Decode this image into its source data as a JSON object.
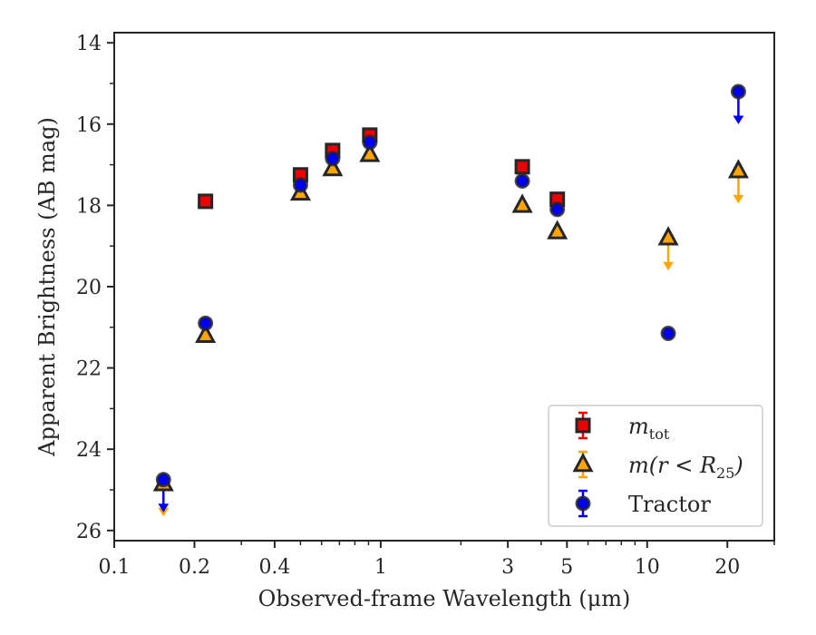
{
  "chart_data": {
    "type": "scatter",
    "xscale": "log",
    "xlabel": "Observed-frame Wavelength (μm)",
    "ylabel": "Apparent Brightness (AB mag)",
    "xlim": [
      0.1,
      30
    ],
    "ylim": [
      26.25,
      13.75
    ],
    "y_inverted": true,
    "x_ticks": [
      {
        "value": 0.1,
        "label": "0.1"
      },
      {
        "value": 0.2,
        "label": "0.2"
      },
      {
        "value": 0.4,
        "label": "0.4"
      },
      {
        "value": 1,
        "label": "1"
      },
      {
        "value": 3,
        "label": "3"
      },
      {
        "value": 5,
        "label": "5"
      },
      {
        "value": 10,
        "label": "10"
      },
      {
        "value": 20,
        "label": "20"
      }
    ],
    "y_ticks": [
      {
        "value": 14,
        "label": "14"
      },
      {
        "value": 16,
        "label": "16"
      },
      {
        "value": 18,
        "label": "18"
      },
      {
        "value": 20,
        "label": "20"
      },
      {
        "value": 22,
        "label": "22"
      },
      {
        "value": 24,
        "label": "24"
      },
      {
        "value": 26,
        "label": "26"
      }
    ],
    "legend_position": "lower-right",
    "series": [
      {
        "key": "mtot",
        "legend_main": "m",
        "legend_sub": "tot",
        "marker": "square",
        "color": "#ee0000",
        "points": [
          {
            "x": 0.22,
            "y": 17.9
          },
          {
            "x": 0.5,
            "y": 17.25
          },
          {
            "x": 0.66,
            "y": 16.65
          },
          {
            "x": 0.91,
            "y": 16.27
          },
          {
            "x": 3.4,
            "y": 17.05
          },
          {
            "x": 4.6,
            "y": 17.85
          }
        ],
        "upper_limits": []
      },
      {
        "key": "mr25",
        "legend_main": "m(r < R",
        "legend_sub": "25",
        "legend_end": ")",
        "marker": "triangle",
        "color": "#ffa500",
        "points": [
          {
            "x": 0.22,
            "y": 21.2
          },
          {
            "x": 0.5,
            "y": 17.7
          },
          {
            "x": 0.66,
            "y": 17.1
          },
          {
            "x": 0.91,
            "y": 16.75
          },
          {
            "x": 3.4,
            "y": 18.0
          },
          {
            "x": 4.6,
            "y": 18.65
          }
        ],
        "upper_limits": [
          {
            "x": 0.153,
            "y": 24.85
          },
          {
            "x": 12.0,
            "y": 18.8
          },
          {
            "x": 22.0,
            "y": 17.15
          }
        ]
      },
      {
        "key": "tractor",
        "legend_main": "Tractor",
        "marker": "circle",
        "color": "#0000ee",
        "points": [
          {
            "x": 0.22,
            "y": 20.9
          },
          {
            "x": 0.5,
            "y": 17.5
          },
          {
            "x": 0.66,
            "y": 16.85
          },
          {
            "x": 0.91,
            "y": 16.45
          },
          {
            "x": 3.4,
            "y": 17.4
          },
          {
            "x": 4.6,
            "y": 18.1
          },
          {
            "x": 12.0,
            "y": 21.15
          }
        ],
        "upper_limits": [
          {
            "x": 0.153,
            "y": 24.75
          },
          {
            "x": 22.0,
            "y": 15.2
          }
        ]
      }
    ]
  }
}
